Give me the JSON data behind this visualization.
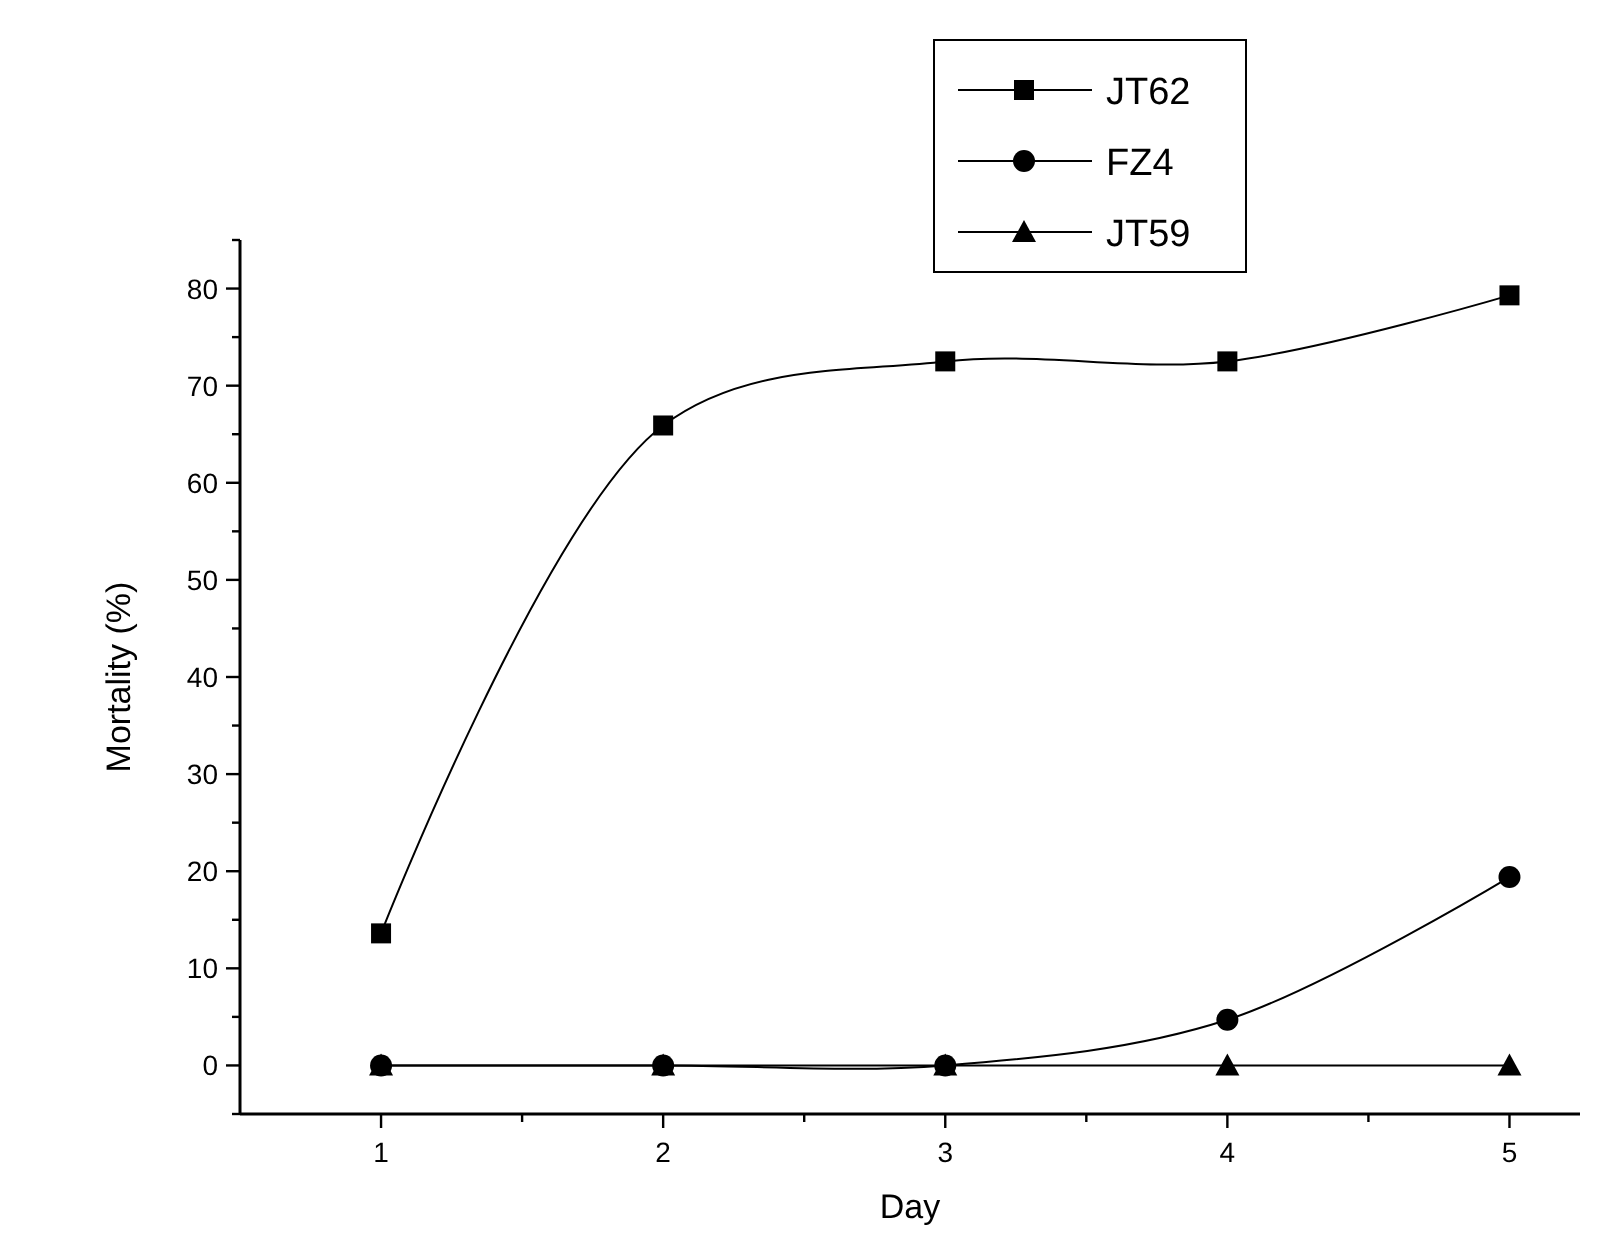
{
  "chart_data": {
    "type": "line",
    "xlabel": "Day",
    "ylabel": "Mortality (%)",
    "x": [
      1,
      2,
      3,
      4,
      5
    ],
    "xlim": [
      0.5,
      5.25
    ],
    "xticks": [
      1,
      {
        "value": 1.5,
        "label": null
      },
      2,
      {
        "value": 2.5,
        "label": null
      },
      3,
      {
        "value": 3.5,
        "label": null
      },
      4,
      {
        "value": 4.5,
        "label": null
      },
      5
    ],
    "ylim": [
      -5,
      85
    ],
    "yticks": [
      {
        "value": -5,
        "label": null
      },
      0,
      {
        "value": 5,
        "label": null
      },
      10,
      {
        "value": 15,
        "label": null
      },
      20,
      {
        "value": 25,
        "label": null
      },
      30,
      {
        "value": 35,
        "label": null
      },
      40,
      {
        "value": 45,
        "label": null
      },
      50,
      {
        "value": 55,
        "label": null
      },
      60,
      {
        "value": 65,
        "label": null
      },
      70,
      {
        "value": 75,
        "label": null
      },
      80,
      {
        "value": 85,
        "label": null
      }
    ],
    "series": [
      {
        "name": "JT62",
        "color": "#000000",
        "marker": "square",
        "values": [
          13.6,
          65.9,
          72.5,
          72.5,
          79.3
        ]
      },
      {
        "name": "FZ4",
        "color": "#000000",
        "marker": "circle",
        "values": [
          0,
          0,
          0,
          4.7,
          19.4
        ]
      },
      {
        "name": "JT59",
        "color": "#000000",
        "marker": "triangle",
        "values": [
          0,
          0,
          0,
          0,
          0
        ]
      }
    ],
    "legend": "top",
    "grid": false,
    "line_style": "solid"
  }
}
